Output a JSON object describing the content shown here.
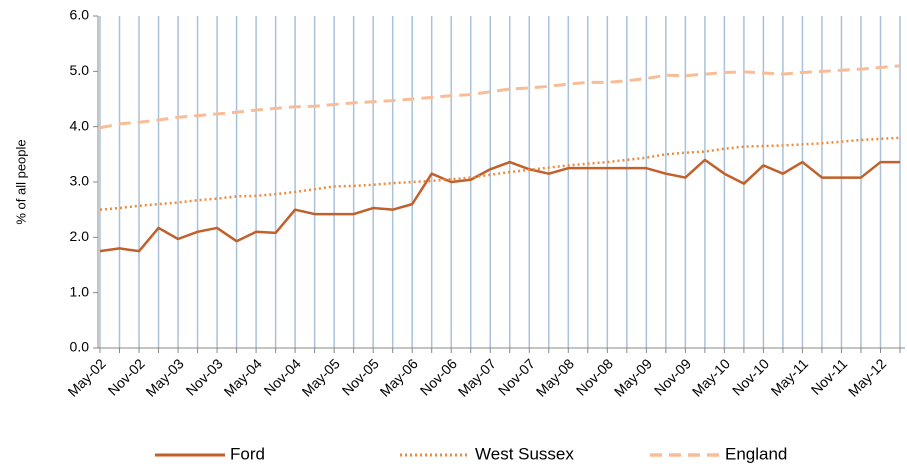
{
  "chart_data": {
    "type": "line",
    "ylabel": "% of all people",
    "categories": [
      "May-02",
      null,
      "Nov-02",
      null,
      "May-03",
      null,
      "Nov-03",
      null,
      "May-04",
      null,
      "Nov-04",
      null,
      "May-05",
      null,
      "Nov-05",
      null,
      "May-06",
      null,
      "Nov-06",
      null,
      "May-07",
      null,
      "Nov-07",
      null,
      "May-08",
      null,
      "Nov-08",
      null,
      "May-09",
      null,
      "Nov-09",
      null,
      "May-10",
      null,
      "Nov-10",
      null,
      "May-11",
      null,
      "Nov-11",
      null,
      "May-12",
      null
    ],
    "series": [
      {
        "name": "Ford",
        "color": "#c0602a",
        "dash": "solid",
        "values": [
          1.75,
          1.8,
          1.75,
          2.17,
          1.97,
          2.1,
          2.17,
          1.93,
          2.1,
          2.08,
          2.5,
          2.42,
          2.42,
          2.42,
          2.53,
          2.5,
          2.6,
          3.15,
          3.0,
          3.04,
          3.23,
          3.36,
          3.23,
          3.15,
          3.25,
          3.25,
          3.25,
          3.25,
          3.25,
          3.15,
          3.08,
          3.4,
          3.15,
          2.97,
          3.3,
          3.15,
          3.36,
          3.08,
          3.08,
          3.08,
          3.36,
          3.36
        ]
      },
      {
        "name": "West Sussex",
        "color": "#ef8a3c",
        "dash": "dotted",
        "values": [
          2.5,
          2.53,
          2.57,
          2.6,
          2.63,
          2.67,
          2.7,
          2.74,
          2.75,
          2.78,
          2.82,
          2.87,
          2.92,
          2.93,
          2.95,
          2.98,
          3.0,
          3.02,
          3.05,
          3.08,
          3.13,
          3.18,
          3.22,
          3.26,
          3.3,
          3.33,
          3.36,
          3.4,
          3.44,
          3.5,
          3.53,
          3.55,
          3.6,
          3.64,
          3.65,
          3.66,
          3.68,
          3.7,
          3.73,
          3.76,
          3.78,
          3.8
        ]
      },
      {
        "name": "England",
        "color": "#f8bd96",
        "dash": "dashed",
        "values": [
          3.98,
          4.05,
          4.08,
          4.12,
          4.17,
          4.2,
          4.23,
          4.26,
          4.3,
          4.33,
          4.36,
          4.37,
          4.4,
          4.43,
          4.45,
          4.47,
          4.5,
          4.53,
          4.56,
          4.58,
          4.63,
          4.68,
          4.7,
          4.73,
          4.77,
          4.8,
          4.8,
          4.83,
          4.87,
          4.93,
          4.92,
          4.95,
          4.98,
          4.99,
          4.97,
          4.95,
          4.98,
          5.0,
          5.02,
          5.04,
          5.07,
          5.1
        ]
      }
    ],
    "ylim": [
      0,
      6
    ],
    "yticks": [
      {
        "value": 0,
        "label": "0.0"
      },
      {
        "value": 1,
        "label": "1.0"
      },
      {
        "value": 2,
        "label": "2.0"
      },
      {
        "value": 3,
        "label": "3.0"
      },
      {
        "value": 4,
        "label": "4.0"
      },
      {
        "value": 5,
        "label": "5.0"
      },
      {
        "value": 6,
        "label": "6.0"
      }
    ],
    "xgrid": true,
    "grid_color": "#a9c2da",
    "legend": "bottom"
  }
}
